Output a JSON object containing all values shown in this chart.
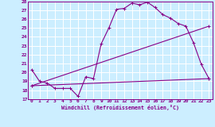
{
  "xlabel": "Windchill (Refroidissement éolien,°C)",
  "bg_color": "#cceeff",
  "line_color": "#880088",
  "grid_color": "#ffffff",
  "xlim": [
    -0.5,
    23.5
  ],
  "ylim": [
    17,
    28
  ],
  "yticks": [
    17,
    18,
    19,
    20,
    21,
    22,
    23,
    24,
    25,
    26,
    27,
    28
  ],
  "xticks": [
    0,
    1,
    2,
    3,
    4,
    5,
    6,
    7,
    8,
    9,
    10,
    11,
    12,
    13,
    14,
    15,
    16,
    17,
    18,
    19,
    20,
    21,
    22,
    23
  ],
  "line1_x": [
    0,
    1,
    2,
    3,
    4,
    5,
    6,
    7,
    8,
    9,
    10,
    11,
    12,
    13,
    14,
    15,
    16,
    17,
    18,
    19,
    20,
    21,
    22,
    23
  ],
  "line1_y": [
    20.3,
    19.0,
    18.8,
    18.2,
    18.2,
    18.2,
    17.3,
    19.5,
    19.3,
    23.2,
    25.0,
    27.1,
    27.2,
    27.8,
    27.6,
    27.9,
    27.3,
    26.5,
    26.1,
    25.5,
    25.2,
    23.3,
    20.9,
    19.3
  ],
  "line2_x": [
    0,
    23
  ],
  "line2_y": [
    18.5,
    19.3
  ],
  "line3_x": [
    0,
    23
  ],
  "line3_y": [
    18.5,
    25.2
  ]
}
